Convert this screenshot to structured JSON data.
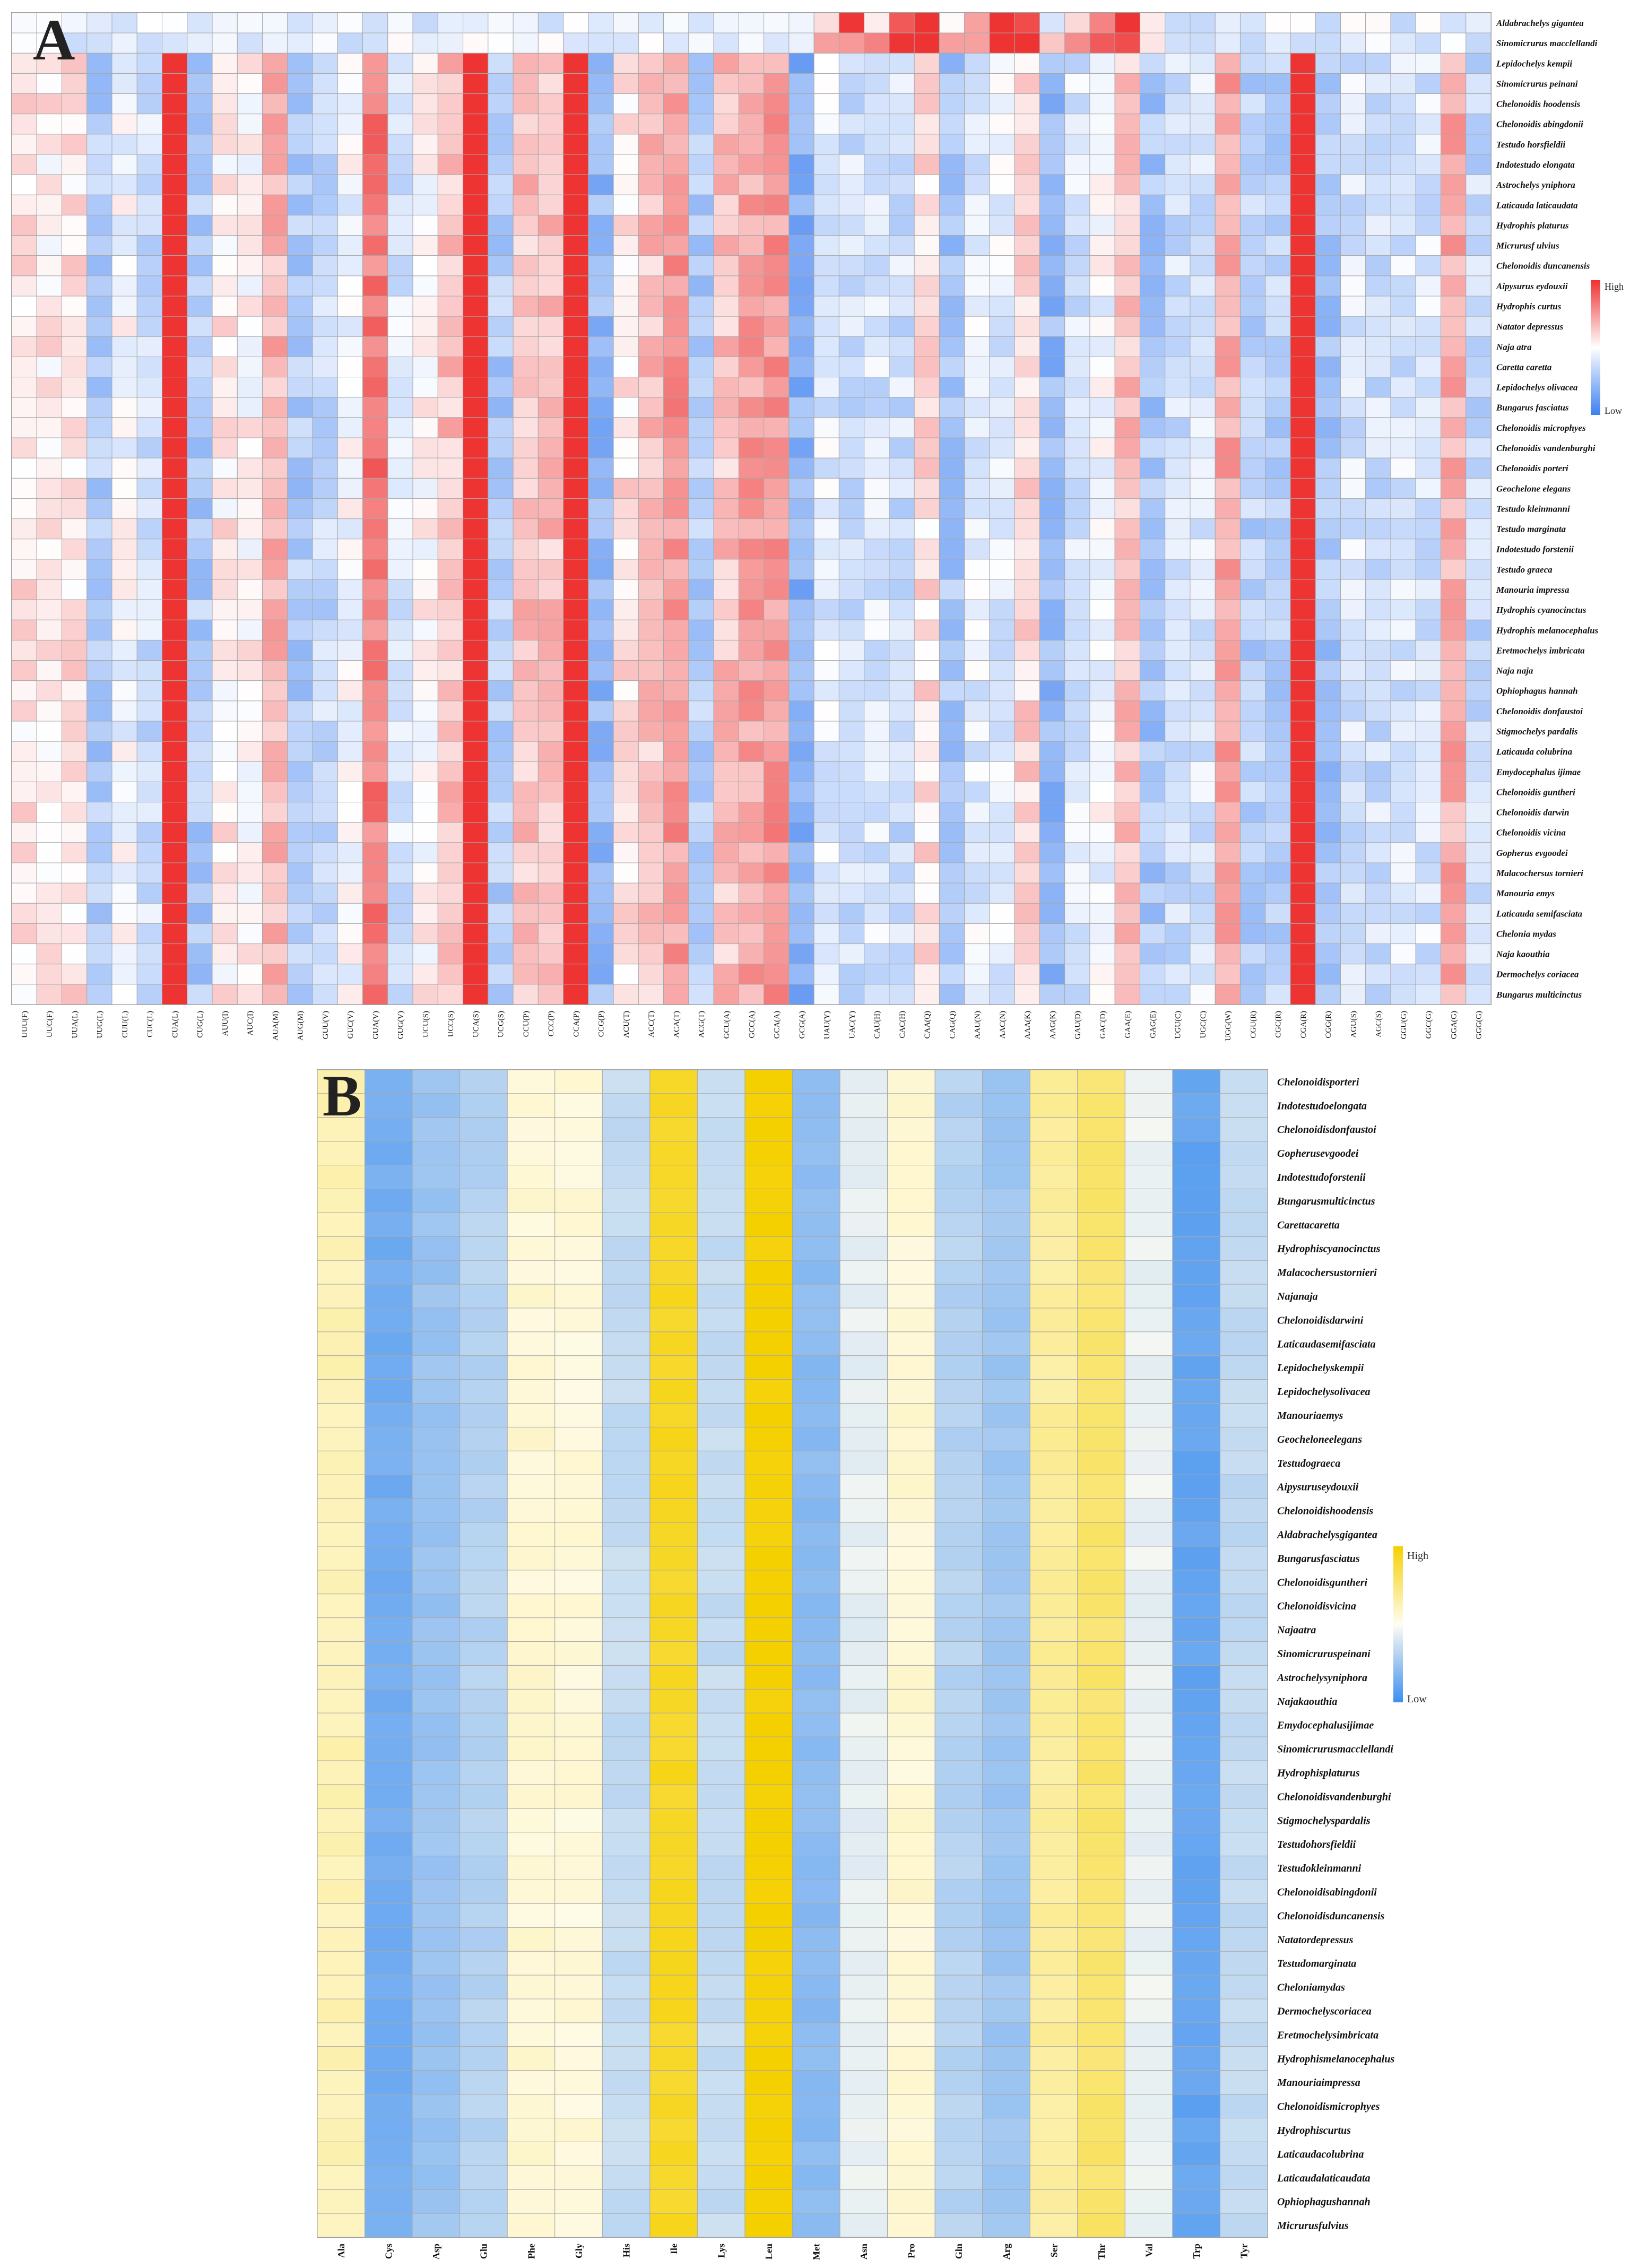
{
  "chart_data": [
    {
      "panel": "A",
      "type": "heatmap",
      "title": "",
      "legend": {
        "high": "High",
        "low": "Low",
        "colors": {
          "low": "#3d7ff0",
          "mid": "#ffffff",
          "high": "#ee3333"
        }
      },
      "columns": [
        "UUU(F)",
        "UUC(F)",
        "UUA(L)",
        "UUG(L)",
        "CUU(L)",
        "CUC(L)",
        "CUA(L)",
        "CUG(L)",
        "AUU(I)",
        "AUC(I)",
        "AUA(M)",
        "AUG(M)",
        "GUU(V)",
        "GUC(V)",
        "GUA(V)",
        "GUG(V)",
        "UCU(S)",
        "UCC(S)",
        "UCA(S)",
        "UCG(S)",
        "CCU(P)",
        "CCC(P)",
        "CCA(P)",
        "CCG(P)",
        "ACU(T)",
        "ACC(T)",
        "ACA(T)",
        "ACG(T)",
        "GCU(A)",
        "GCC(A)",
        "GCA(A)",
        "GCG(A)",
        "UAU(Y)",
        "UAC(Y)",
        "CAU(H)",
        "CAC(H)",
        "CAA(Q)",
        "CAG(Q)",
        "AAU(N)",
        "AAC(N)",
        "AAA(K)",
        "AAG(K)",
        "GAU(D)",
        "GAC(D)",
        "GAA(E)",
        "GAG(E)",
        "UGU(C)",
        "UGC(C)",
        "UGG(W)",
        "CGU(R)",
        "CGC(R)",
        "CGA(R)",
        "CGG(R)",
        "AGU(S)",
        "AGC(S)",
        "GGU(G)",
        "GGC(G)",
        "GGA(G)",
        "GGG(G)"
      ],
      "rows": [
        "Aldabrachelys gigantea",
        "Sinomicrurus macclellandi",
        "Lepidochelys kempii",
        "Sinomicrurus peinani",
        "Chelonoidis hoodensis",
        "Chelonoidis abingdonii",
        "Testudo horsfieldii",
        "Indotestudo elongata",
        "Astrochelys yniphora",
        "Laticauda laticaudata",
        "Hydrophis platurus",
        "Micrurusf ulvius",
        "Chelonoidis duncanensis",
        "Aipysurus eydouxii",
        "Hydrophis curtus",
        "Natator depressus",
        "Naja atra",
        "Caretta caretta",
        "Lepidochelys olivacea",
        "Bungarus fasciatus",
        "Chelonoidis microphyes",
        "Chelonoidis vandenburghi",
        "Chelonoidis porteri",
        "Geochelone elegans",
        "Testudo kleinmanni",
        "Testudo marginata",
        "Indotestudo forstenii",
        "Testudo graeca",
        "Manouria impressa",
        "Hydrophis cyanocinctus",
        "Hydrophis melanocephalus",
        "Eretmochelys imbricata",
        "Naja naja",
        "Ophiophagus hannah",
        "Chelonoidis donfaustoi",
        "Stigmochelys pardalis",
        "Laticauda colubrina",
        "Emydocephalus ijimae",
        "Chelonoidis guntheri",
        "Chelonoidis darwin",
        "Chelonoidis vicina",
        "Gopherus evgoodei",
        "Malacochersus tornieri",
        "Manouria emys",
        "Laticauda semifasciata",
        "Chelonia mydas",
        "Naja kaouthia",
        "Dermochelys coriacea",
        "Bungarus multicinctus"
      ],
      "column_profile": [
        0.15,
        0.1,
        0.15,
        -0.4,
        -0.05,
        -0.25,
        1.5,
        -0.4,
        0.1,
        0.05,
        0.35,
        -0.4,
        -0.3,
        -0.05,
        0.65,
        -0.2,
        0.05,
        0.3,
        1.3,
        -0.4,
        0.3,
        0.3,
        1.6,
        -0.55,
        0.15,
        0.3,
        0.5,
        -0.4,
        0.3,
        0.45,
        0.5,
        -0.6,
        -0.15,
        -0.25,
        -0.2,
        -0.25,
        0.15,
        -0.45,
        -0.15,
        -0.15,
        0.2,
        -0.55,
        -0.2,
        -0.05,
        0.3,
        -0.45,
        -0.25,
        -0.2,
        0.45,
        -0.35,
        -0.35,
        1.2,
        -0.45,
        -0.2,
        -0.25,
        -0.2,
        -0.2,
        0.4,
        -0.3
      ],
      "special_rows": {
        "0": [
          -0.15,
          -0.15,
          -0.15,
          -0.15,
          -0.15,
          -0.15,
          -0.15,
          -0.15,
          -0.15,
          -0.15,
          -0.15,
          -0.15,
          -0.15,
          -0.15,
          -0.15,
          -0.15,
          -0.15,
          -0.15,
          -0.15,
          -0.15,
          -0.15,
          -0.15,
          -0.15,
          -0.15,
          -0.15,
          -0.15,
          -0.15,
          -0.15,
          -0.15,
          -0.15,
          -0.15,
          -0.15,
          0.3,
          0.9,
          0.2,
          0.7,
          1.2,
          -0.05,
          0.5,
          1.6,
          1.0,
          -0.05,
          0.3,
          0.6,
          1.1,
          0.0,
          -0.15,
          -0.15,
          -0.15,
          -0.15,
          -0.15,
          -0.15,
          -0.15,
          -0.15,
          -0.15,
          -0.15,
          -0.15,
          -0.15,
          -0.15
        ],
        "1": [
          -0.15,
          -0.15,
          -0.15,
          -0.15,
          -0.15,
          -0.15,
          -0.15,
          -0.15,
          -0.15,
          -0.15,
          -0.15,
          -0.15,
          -0.15,
          -0.15,
          -0.15,
          -0.15,
          -0.15,
          -0.15,
          -0.15,
          -0.15,
          -0.15,
          -0.15,
          -0.15,
          -0.15,
          -0.15,
          -0.15,
          -0.15,
          -0.15,
          -0.15,
          -0.15,
          -0.15,
          -0.15,
          0.5,
          0.6,
          0.5,
          0.9,
          1.3,
          0.3,
          0.6,
          1.5,
          1.2,
          0.3,
          0.4,
          0.8,
          1.0,
          0.2,
          -0.15,
          -0.15,
          -0.15,
          -0.15,
          -0.15,
          -0.15,
          -0.15,
          -0.15,
          -0.15,
          -0.15,
          -0.15,
          -0.15,
          -0.15
        ]
      }
    },
    {
      "panel": "B",
      "type": "heatmap",
      "title": "",
      "legend": {
        "high": "High",
        "low": "Low",
        "colors": {
          "low": "#3d8ef0",
          "mid": "#fffdf2",
          "high": "#f5d000"
        }
      },
      "columns": [
        "Ala",
        "Cys",
        "Asp",
        "Glu",
        "Phe",
        "Gly",
        "His",
        "Ile",
        "Lys",
        "Leu",
        "Met",
        "Asn",
        "Pro",
        "Gln",
        "Arg",
        "Ser",
        "Thr",
        "Val",
        "Trp",
        "Tyr"
      ],
      "rows": [
        "Chelonoidisporteri",
        "Indotestudoelongata",
        "Chelonoidisdonfaustoi",
        "Gopherusevgoodei",
        "Indotestudoforstenii",
        "Bungarusmulticinctus",
        "Carettacaretta",
        "Hydrophiscyanocinctus",
        "Malacochersustornieri",
        "Najanaja",
        "Chelonoidisdarwini",
        "Laticaudasemifasciata",
        "Lepidochelyskempii",
        "Lepidochelysolivacea",
        "Manouriaemys",
        "Geocheloneelegans",
        "Testudograeca",
        "Aipysuruseydouxii",
        "Chelonoidishoodensis",
        "Aldabrachelysgigantea",
        "Bungarusfasciatus",
        "Chelonoidisguntheri",
        "Chelonoidisvicina",
        "Najaatra",
        "Sinomicruruspeinani",
        "Astrochelysyniphora",
        "Najakaouthia",
        "Emydocephalusijimae",
        "Sinomicrurusmacclellandi",
        "Hydrophisplaturus",
        "Chelonoidisvandenburghi",
        "Stigmochelyspardalis",
        "Testudohorsfieldii",
        "Testudokleinmanni",
        "Chelonoidisabingdonii",
        "Chelonoidisduncanensis",
        "Natatordepressus",
        "Testudomarginata",
        "Cheloniamydas",
        "Dermochelyscoriacea",
        "Eretmochelysimbricata",
        "Hydrophismelanocephalus",
        "Manouriaimpressa",
        "Chelonoidismicrophyes",
        "Hydrophiscurtus",
        "Laticaudacolubrina",
        "Laticaudalaticaudata",
        "Ophiophagushannah",
        "Micrurusfulvius"
      ],
      "column_profile": [
        0.25,
        -0.72,
        -0.52,
        -0.38,
        0.12,
        0.1,
        -0.3,
        0.85,
        -0.3,
        1.0,
        -0.6,
        -0.12,
        0.12,
        -0.38,
        -0.5,
        0.35,
        0.55,
        -0.1,
        -0.8,
        -0.32
      ]
    }
  ]
}
